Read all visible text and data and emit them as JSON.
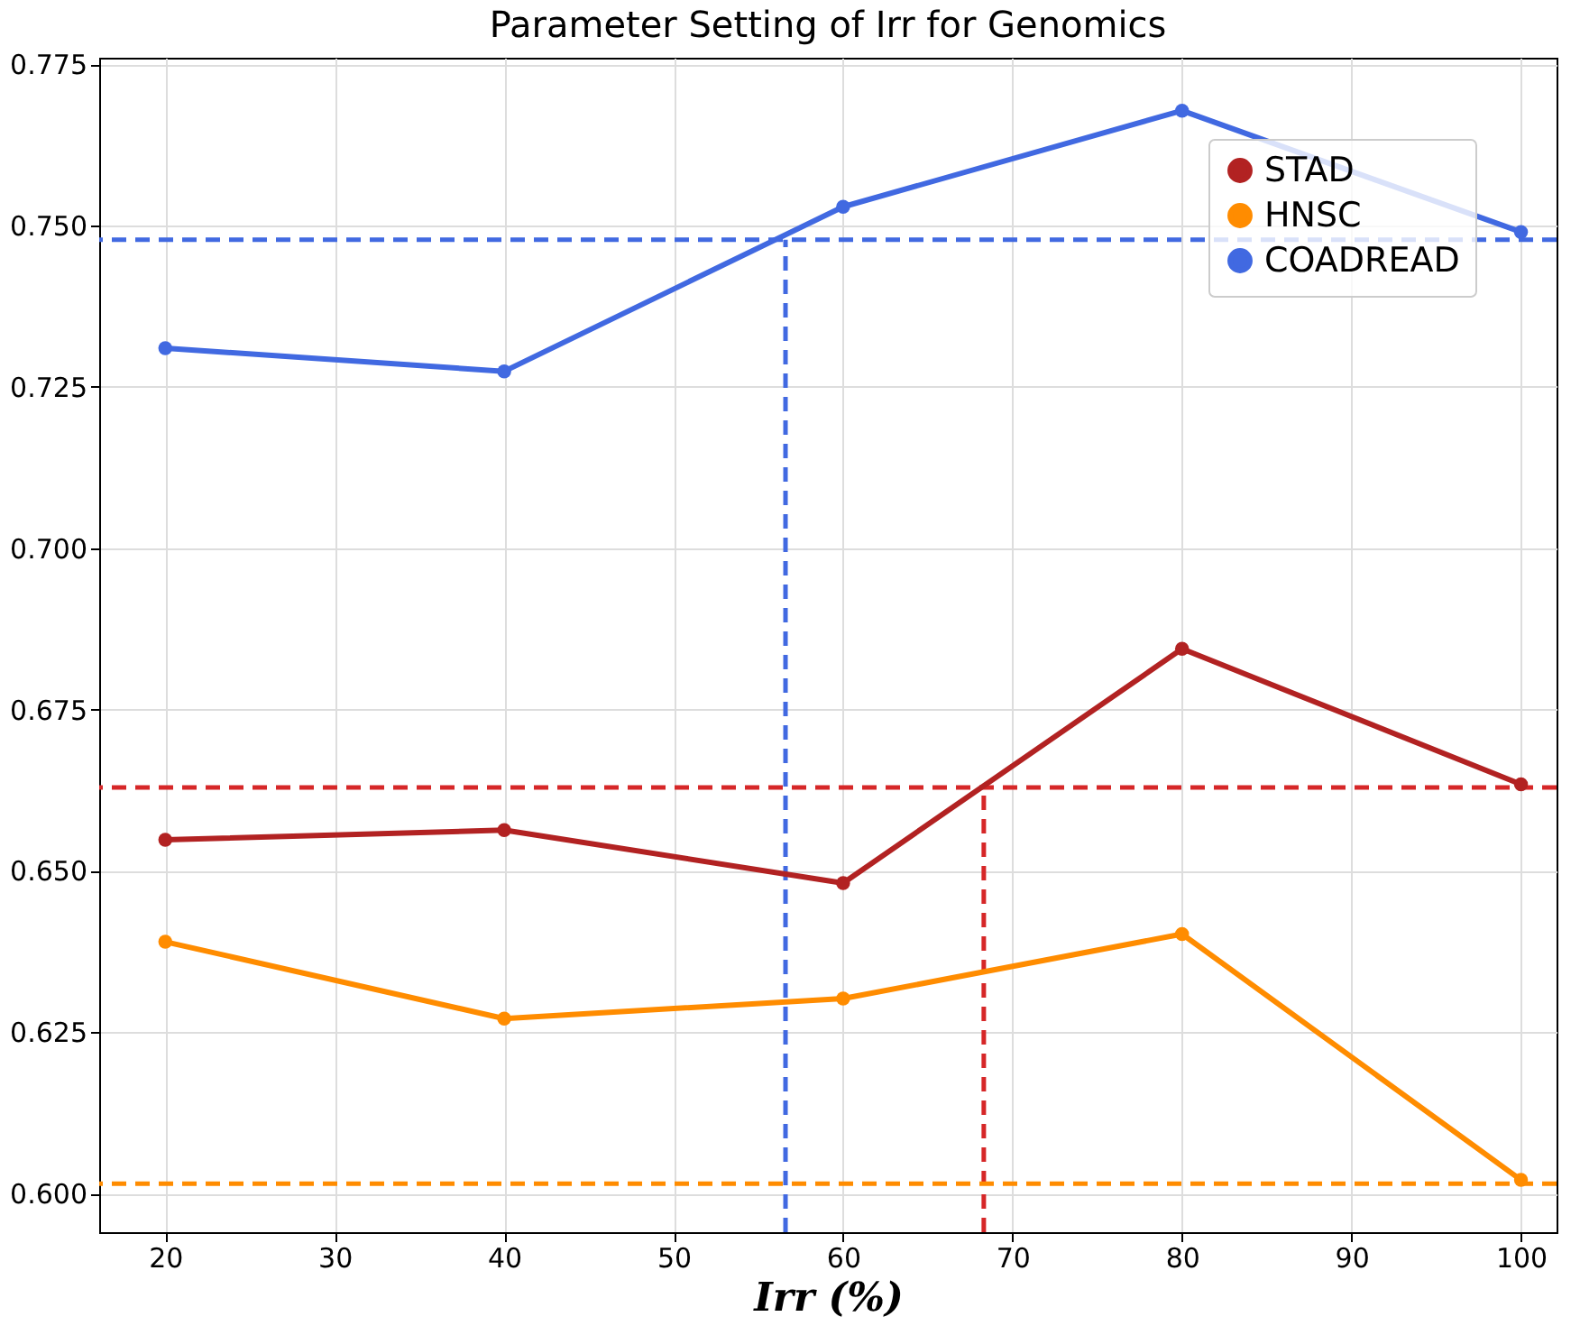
{
  "chart_data": {
    "type": "line",
    "title": "Parameter Setting of Irr for Genomics",
    "xlabel": "Irr   (%)",
    "x": [
      20,
      40,
      60,
      80,
      100
    ],
    "series": [
      {
        "name": "STAD",
        "color": "#b22222",
        "values": [
          0.6548,
          0.6563,
          0.6481,
          0.6844,
          0.6634
        ]
      },
      {
        "name": "HNSC",
        "color": "#ff8c00",
        "values": [
          0.639,
          0.6271,
          0.6302,
          0.6402,
          0.6021
        ]
      },
      {
        "name": "COADREAD",
        "color": "#4169e1",
        "values": [
          0.731,
          0.7274,
          0.7529,
          0.7678,
          0.749
        ]
      }
    ],
    "xlim": [
      16.1,
      102.1
    ],
    "xticks": [
      20,
      30,
      40,
      50,
      60,
      70,
      80,
      90,
      100
    ],
    "ylim": [
      0.594,
      0.776
    ],
    "yticks": [
      {
        "value": 0.6,
        "label": "0.600"
      },
      0.625,
      {
        "value": 0.65,
        "label": "0.650"
      },
      0.675,
      {
        "value": 0.7,
        "label": "0.700"
      },
      0.725,
      {
        "value": 0.75,
        "label": "0.750"
      },
      0.775
    ],
    "ref_lines": [
      {
        "axis": "y",
        "value": 0.7478,
        "color": "#4169e1",
        "line_style": "dashed"
      },
      {
        "axis": "y",
        "value": 0.6629,
        "color": "#d62728",
        "line_style": "dashed"
      },
      {
        "axis": "y",
        "value": 0.6015,
        "color": "#ff8c00",
        "line_style": "dashed"
      },
      {
        "axis": "x",
        "value": 56.6,
        "color": "#4169e1",
        "line_style": "dashed"
      },
      {
        "axis": "x",
        "value": 68.3,
        "color": "#d62728",
        "line_style": "dashed"
      }
    ],
    "grid": true,
    "legend": "top right",
    "marker": "circle",
    "line_style": "solid"
  }
}
